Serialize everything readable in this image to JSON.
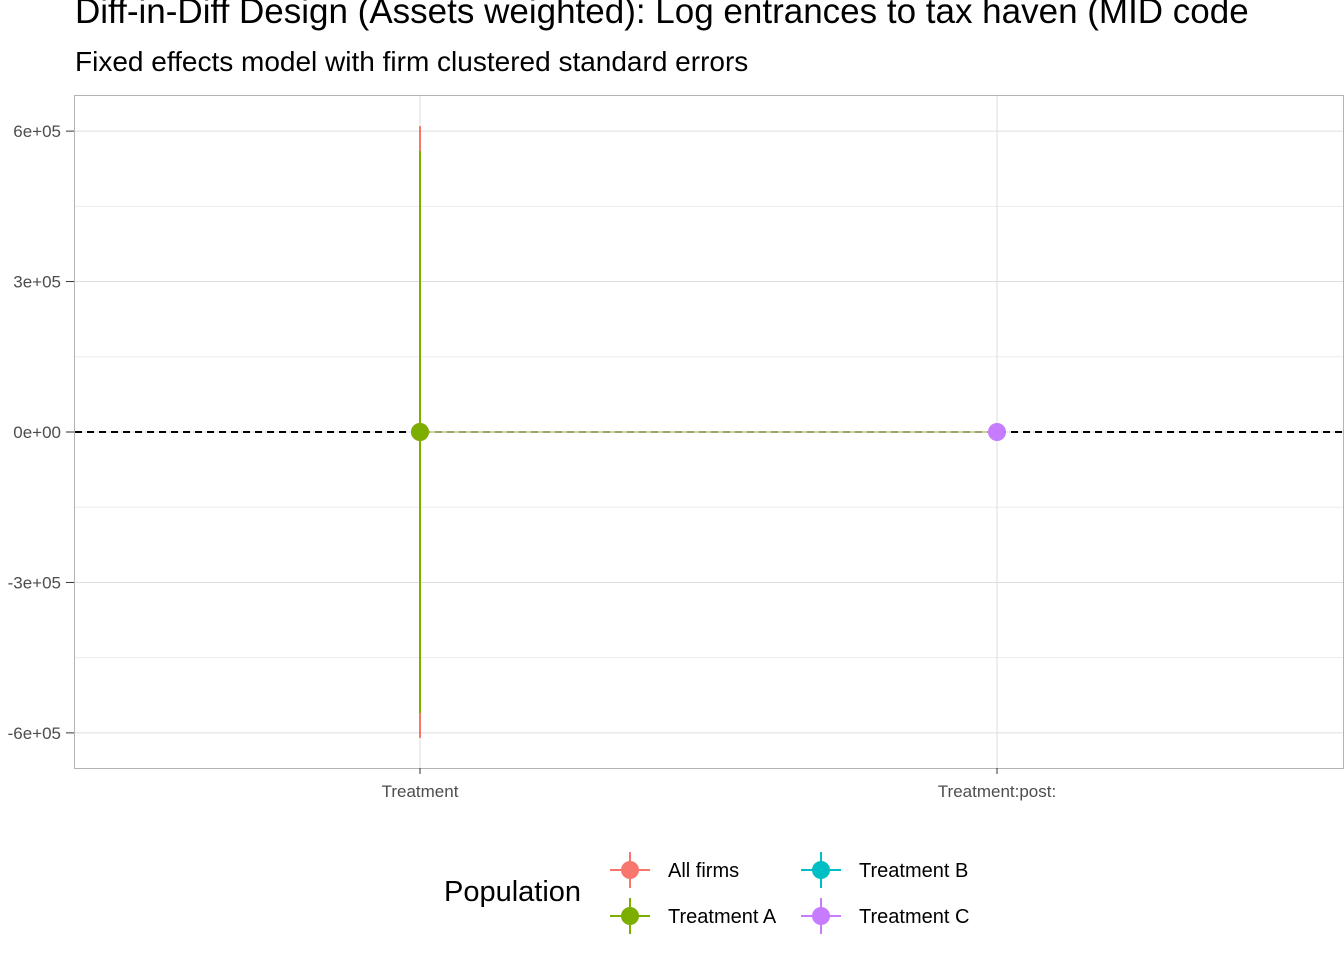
{
  "chart_data": {
    "type": "scatter",
    "title": "Diff-in-Diff Design (Assets weighted): Log entrances to tax haven (MID code",
    "subtitle": "Fixed effects model with firm clustered standard errors",
    "xlabel": "",
    "ylabel": "",
    "categories": [
      "Treatment",
      "Treatment:post:"
    ],
    "y_ticks": [
      "6e+05",
      "3e+05",
      "0e+00",
      "-3e+05",
      "-6e+05"
    ],
    "y_tick_values": [
      600000,
      300000,
      0,
      -300000,
      -600000
    ],
    "ylim": [
      -670000,
      670000
    ],
    "reference_line": 0,
    "grid": true,
    "legend": {
      "title": "Population",
      "position": "bottom"
    },
    "series": [
      {
        "name": "All firms",
        "color": "#F8766D",
        "points": [
          {
            "x": "Treatment",
            "y": 0,
            "lower": -610000,
            "upper": 610000
          }
        ]
      },
      {
        "name": "Treatment A",
        "color": "#7CAE00",
        "points": [
          {
            "x": "Treatment",
            "y": 0,
            "lower": -560000,
            "upper": 560000
          }
        ]
      },
      {
        "name": "Treatment B",
        "color": "#00BFC4",
        "points": []
      },
      {
        "name": "Treatment C",
        "color": "#C77CFF",
        "points": [
          {
            "x": "Treatment:post:",
            "y": 0,
            "lower": 0,
            "upper": 0
          }
        ]
      }
    ]
  }
}
